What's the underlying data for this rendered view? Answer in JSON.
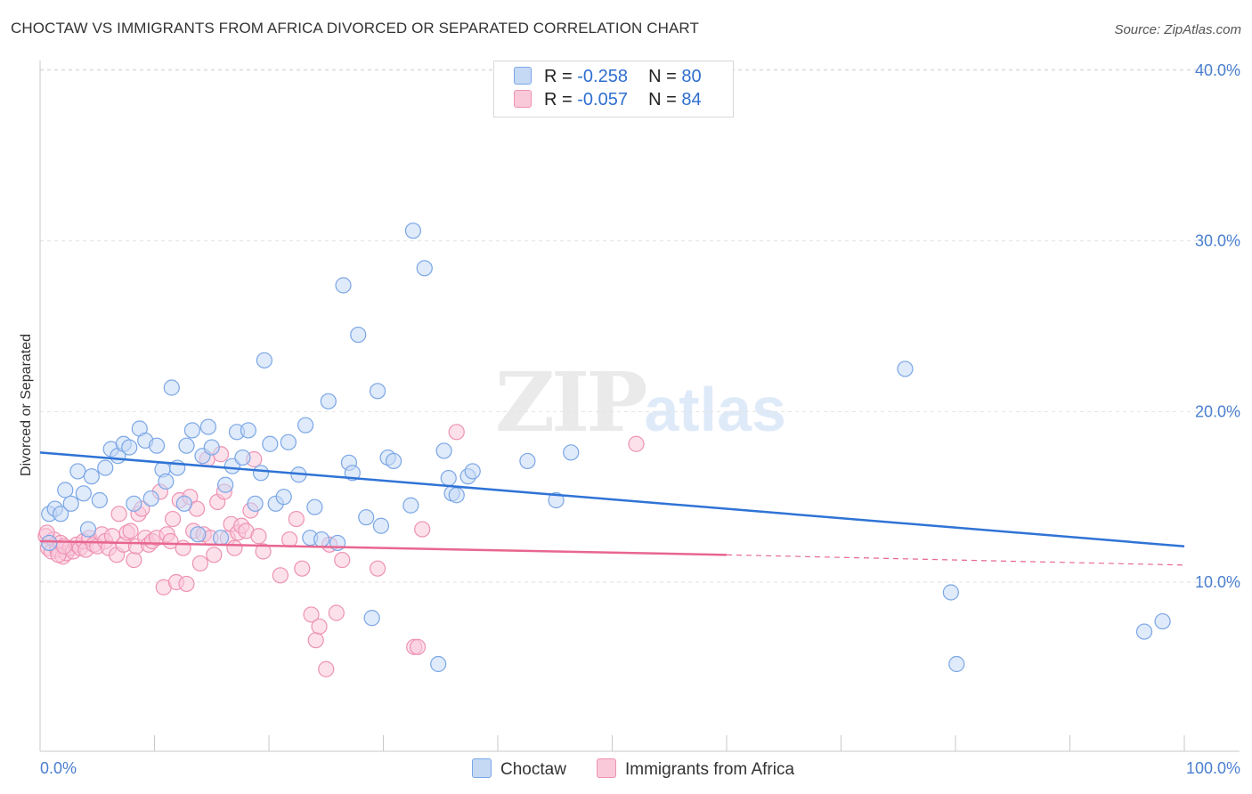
{
  "title": "CHOCTAW VS IMMIGRANTS FROM AFRICA DIVORCED OR SEPARATED CORRELATION CHART",
  "source": "Source: ZipAtlas.com",
  "watermark": {
    "zip": "ZIP",
    "atlas": "atlas"
  },
  "legend": {
    "rows": [
      {
        "r_label": "R =",
        "r_value": "-0.258",
        "n_label": "N =",
        "n_value": "80"
      },
      {
        "r_label": "R =",
        "r_value": "-0.057",
        "n_label": "N =",
        "n_value": "84"
      }
    ]
  },
  "bottom_legend": [
    "Choctaw",
    "Immigrants from Africa"
  ],
  "colors": {
    "choctaw_fill": "#c5d9f5",
    "choctaw_stroke": "#7aa6e6",
    "choctaw_line": "#2f73d6",
    "africa_fill": "#f9c9da",
    "africa_stroke": "#ee92b2",
    "africa_line": "#e8668f",
    "axis_text": "#4a7fd0",
    "grid": "#e2e2e2"
  },
  "chart_data": {
    "type": "scatter",
    "title": "CHOCTAW VS IMMIGRANTS FROM AFRICA DIVORCED OR SEPARATED CORRELATION CHART",
    "xlabel": "",
    "ylabel": "Divorced or Separated",
    "xlim": [
      0,
      100
    ],
    "ylim": [
      0,
      42
    ],
    "x_tick_labels": [
      "0.0%",
      "100.0%"
    ],
    "y_ticks": [
      10,
      20,
      30,
      40
    ],
    "y_tick_labels": [
      "10.0%",
      "20.0%",
      "30.0%",
      "40.0%"
    ],
    "grid": true,
    "series": [
      {
        "name": "Choctaw",
        "R": -0.258,
        "N": 80,
        "trend": {
          "x": [
            0,
            100
          ],
          "y": [
            17.6,
            12.1
          ]
        },
        "points": [
          [
            0.8,
            12.3
          ],
          [
            0.8,
            14.0
          ],
          [
            1.3,
            14.3
          ],
          [
            1.8,
            14.0
          ],
          [
            2.2,
            15.4
          ],
          [
            2.7,
            14.6
          ],
          [
            3.3,
            16.5
          ],
          [
            3.8,
            15.2
          ],
          [
            4.2,
            13.1
          ],
          [
            4.5,
            16.2
          ],
          [
            5.2,
            14.8
          ],
          [
            5.7,
            16.7
          ],
          [
            6.2,
            17.8
          ],
          [
            6.8,
            17.4
          ],
          [
            7.3,
            18.1
          ],
          [
            7.8,
            17.9
          ],
          [
            8.2,
            14.6
          ],
          [
            8.7,
            19.0
          ],
          [
            9.2,
            18.3
          ],
          [
            9.7,
            14.9
          ],
          [
            10.2,
            18.0
          ],
          [
            10.7,
            16.6
          ],
          [
            11.0,
            15.9
          ],
          [
            11.5,
            21.4
          ],
          [
            12.0,
            16.7
          ],
          [
            12.6,
            14.6
          ],
          [
            12.8,
            18.0
          ],
          [
            13.3,
            18.9
          ],
          [
            13.8,
            12.8
          ],
          [
            14.2,
            17.4
          ],
          [
            14.7,
            19.1
          ],
          [
            15.0,
            17.9
          ],
          [
            15.8,
            12.6
          ],
          [
            16.2,
            15.7
          ],
          [
            16.8,
            16.8
          ],
          [
            17.2,
            18.8
          ],
          [
            17.7,
            17.3
          ],
          [
            18.2,
            18.9
          ],
          [
            18.8,
            14.6
          ],
          [
            19.3,
            16.4
          ],
          [
            19.6,
            23.0
          ],
          [
            20.1,
            18.1
          ],
          [
            20.6,
            14.6
          ],
          [
            21.3,
            15.0
          ],
          [
            21.7,
            18.2
          ],
          [
            22.6,
            16.3
          ],
          [
            23.2,
            19.2
          ],
          [
            23.6,
            12.6
          ],
          [
            24.0,
            14.4
          ],
          [
            24.6,
            12.5
          ],
          [
            25.2,
            20.6
          ],
          [
            26.0,
            12.3
          ],
          [
            26.5,
            27.4
          ],
          [
            27.0,
            17.0
          ],
          [
            27.3,
            16.4
          ],
          [
            27.8,
            24.5
          ],
          [
            28.5,
            13.8
          ],
          [
            29.0,
            7.9
          ],
          [
            29.5,
            21.2
          ],
          [
            29.8,
            13.3
          ],
          [
            30.4,
            17.3
          ],
          [
            30.9,
            17.1
          ],
          [
            32.4,
            14.5
          ],
          [
            32.6,
            30.6
          ],
          [
            33.6,
            28.4
          ],
          [
            34.8,
            5.2
          ],
          [
            35.3,
            17.7
          ],
          [
            35.7,
            16.1
          ],
          [
            36.0,
            15.2
          ],
          [
            36.4,
            15.1
          ],
          [
            37.4,
            16.2
          ],
          [
            37.8,
            16.5
          ],
          [
            42.6,
            17.1
          ],
          [
            45.1,
            14.8
          ],
          [
            46.4,
            17.6
          ],
          [
            75.6,
            22.5
          ],
          [
            79.6,
            9.4
          ],
          [
            80.1,
            5.2
          ],
          [
            96.5,
            7.1
          ],
          [
            98.1,
            7.7
          ]
        ]
      },
      {
        "name": "Immigrants from Africa",
        "R": -0.057,
        "N": 84,
        "trend": {
          "x": [
            0,
            60,
            100
          ],
          "y": [
            12.4,
            11.6,
            11.0
          ],
          "solid_until": 60
        },
        "points": [
          [
            0.5,
            12.7
          ],
          [
            0.7,
            12.0
          ],
          [
            1.0,
            11.8
          ],
          [
            1.2,
            12.5
          ],
          [
            1.5,
            11.9
          ],
          [
            1.8,
            12.3
          ],
          [
            2.0,
            11.5
          ],
          [
            2.3,
            11.7
          ],
          [
            2.6,
            12.0
          ],
          [
            2.9,
            11.8
          ],
          [
            3.2,
            12.2
          ],
          [
            3.5,
            12.0
          ],
          [
            3.8,
            12.4
          ],
          [
            4.0,
            11.9
          ],
          [
            4.3,
            12.6
          ],
          [
            4.7,
            12.2
          ],
          [
            5.0,
            12.1
          ],
          [
            5.4,
            12.8
          ],
          [
            5.7,
            12.4
          ],
          [
            6.0,
            12.0
          ],
          [
            6.3,
            12.7
          ],
          [
            6.7,
            11.6
          ],
          [
            6.9,
            14.0
          ],
          [
            7.3,
            12.2
          ],
          [
            7.6,
            12.9
          ],
          [
            7.9,
            13.0
          ],
          [
            8.2,
            11.3
          ],
          [
            8.4,
            12.1
          ],
          [
            8.6,
            14.0
          ],
          [
            8.9,
            14.3
          ],
          [
            9.2,
            12.6
          ],
          [
            9.5,
            12.2
          ],
          [
            9.8,
            12.4
          ],
          [
            10.2,
            12.6
          ],
          [
            10.5,
            15.3
          ],
          [
            10.8,
            9.7
          ],
          [
            11.1,
            12.8
          ],
          [
            11.4,
            12.4
          ],
          [
            11.6,
            13.7
          ],
          [
            11.9,
            10.0
          ],
          [
            12.2,
            14.8
          ],
          [
            12.5,
            12.0
          ],
          [
            12.8,
            9.9
          ],
          [
            13.1,
            15.0
          ],
          [
            13.4,
            13.0
          ],
          [
            13.7,
            14.3
          ],
          [
            14.0,
            11.1
          ],
          [
            14.3,
            12.8
          ],
          [
            14.6,
            17.2
          ],
          [
            14.9,
            12.6
          ],
          [
            15.2,
            11.6
          ],
          [
            15.5,
            14.7
          ],
          [
            15.8,
            17.5
          ],
          [
            16.1,
            15.3
          ],
          [
            16.4,
            12.6
          ],
          [
            16.7,
            13.4
          ],
          [
            17.0,
            12.0
          ],
          [
            17.3,
            12.9
          ],
          [
            17.6,
            13.3
          ],
          [
            18.0,
            13.0
          ],
          [
            18.4,
            14.2
          ],
          [
            18.7,
            17.2
          ],
          [
            19.1,
            12.7
          ],
          [
            19.5,
            11.8
          ],
          [
            21.0,
            10.4
          ],
          [
            21.8,
            12.5
          ],
          [
            22.4,
            13.7
          ],
          [
            22.9,
            10.8
          ],
          [
            23.7,
            8.1
          ],
          [
            24.1,
            6.6
          ],
          [
            24.4,
            7.4
          ],
          [
            25.0,
            4.9
          ],
          [
            25.3,
            12.2
          ],
          [
            25.9,
            8.2
          ],
          [
            26.4,
            11.3
          ],
          [
            29.5,
            10.8
          ],
          [
            32.7,
            6.2
          ],
          [
            33.0,
            6.2
          ],
          [
            33.4,
            13.1
          ],
          [
            36.4,
            18.8
          ],
          [
            52.1,
            18.1
          ],
          [
            0.6,
            12.9
          ],
          [
            1.6,
            11.6
          ],
          [
            2.1,
            12.1
          ]
        ]
      }
    ]
  }
}
